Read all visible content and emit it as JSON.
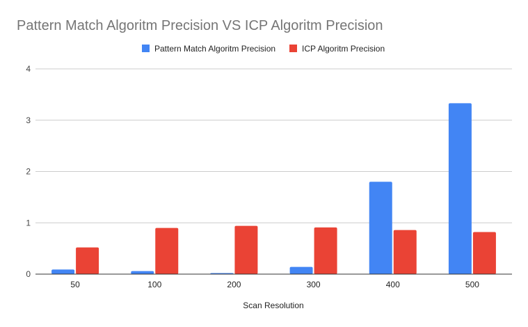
{
  "chart_data": {
    "type": "bar",
    "title": "Pattern Match Algoritm Precision VS ICP Algoritm Precision",
    "xlabel": "Scan Resolution",
    "ylabel": "",
    "categories": [
      "50",
      "100",
      "200",
      "300",
      "400",
      "500"
    ],
    "series": [
      {
        "name": "Pattern Match Algoritm Precision",
        "color": "#4285f4",
        "values": [
          0.09,
          0.06,
          0.02,
          0.14,
          1.8,
          3.33
        ]
      },
      {
        "name": "ICP Algoritm Precision",
        "color": "#ea4335",
        "values": [
          0.52,
          0.9,
          0.94,
          0.91,
          0.86,
          0.82
        ]
      }
    ],
    "ylim": [
      0,
      4
    ],
    "yticks": [
      "0",
      "1",
      "2",
      "3",
      "4"
    ],
    "grid": true,
    "legend_position": "top-center"
  }
}
